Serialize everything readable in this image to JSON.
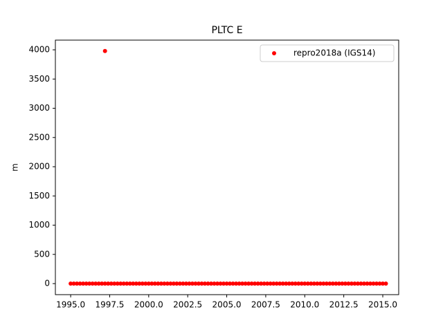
{
  "chart_data": {
    "type": "scatter",
    "title": "PLTC E",
    "ylabel": "m",
    "x": [
      1995,
      1995.2,
      1995.4,
      1995.6,
      1995.8,
      1996,
      1996.2,
      1996.4,
      1996.6,
      1996.8,
      1997,
      1997.2,
      1997.2,
      1997.4,
      1997.6,
      1997.8,
      1998,
      1998.2,
      1998.4,
      1998.6,
      1998.8,
      1999,
      1999.2,
      1999.4,
      1999.6,
      1999.8,
      2000,
      2000.2,
      2000.4,
      2000.6,
      2000.8,
      2001,
      2001.2,
      2001.4,
      2001.6,
      2001.8,
      2002,
      2002.2,
      2002.4,
      2002.6,
      2002.8,
      2003,
      2003.2,
      2003.4,
      2003.6,
      2003.8,
      2004,
      2004.2,
      2004.4,
      2004.6,
      2004.8,
      2005,
      2005.2,
      2005.4,
      2005.6,
      2005.8,
      2006,
      2006.2,
      2006.4,
      2006.6,
      2006.8,
      2007,
      2007.2,
      2007.4,
      2007.6,
      2007.8,
      2008,
      2008.2,
      2008.4,
      2008.6,
      2008.8,
      2009,
      2009.2,
      2009.4,
      2009.6,
      2009.8,
      2010,
      2010.2,
      2010.4,
      2010.6,
      2010.8,
      2011,
      2011.2,
      2011.4,
      2011.6,
      2011.8,
      2012,
      2012.2,
      2012.4,
      2012.6,
      2012.8,
      2013,
      2013.2,
      2013.4,
      2013.6,
      2013.8,
      2014,
      2014.2,
      2014.4,
      2014.6,
      2014.8,
      2015,
      2015.2
    ],
    "series": [
      {
        "name": "repro2018a (IGS14)",
        "color": "#ff0000",
        "values": [
          0,
          0,
          0,
          0,
          0,
          0,
          0,
          0,
          0,
          0,
          0,
          0,
          3980,
          0,
          0,
          0,
          0,
          0,
          0,
          0,
          0,
          0,
          0,
          0,
          0,
          0,
          0,
          0,
          0,
          0,
          0,
          0,
          0,
          0,
          0,
          0,
          0,
          0,
          0,
          0,
          0,
          0,
          0,
          0,
          0,
          0,
          0,
          0,
          0,
          0,
          0,
          0,
          0,
          0,
          0,
          0,
          0,
          0,
          0,
          0,
          0,
          0,
          0,
          0,
          0,
          0,
          0,
          0,
          0,
          0,
          0,
          0,
          0,
          0,
          0,
          0,
          0,
          0,
          0,
          0,
          0,
          0,
          0,
          0,
          0,
          0,
          0,
          0,
          0,
          0,
          0,
          0,
          0,
          0,
          0,
          0,
          0,
          0,
          0,
          0,
          0,
          0,
          0
        ]
      }
    ],
    "xlim": [
      1994.02,
      2016.02
    ],
    "xticks": [
      {
        "value": 1995,
        "label": "1995.0"
      },
      1997.5,
      {
        "value": 2000,
        "label": "2000.0"
      },
      2002.5,
      {
        "value": 2005,
        "label": "2005.0"
      },
      2007.5,
      {
        "value": 2010,
        "label": "2010.0"
      },
      2012.5,
      {
        "value": 2015,
        "label": "2015.0"
      }
    ],
    "ylim": [
      -189,
      4166
    ],
    "yticks": [
      0,
      500,
      1000,
      1500,
      2000,
      2500,
      3000,
      3500,
      4000
    ],
    "legend": "upper right"
  }
}
